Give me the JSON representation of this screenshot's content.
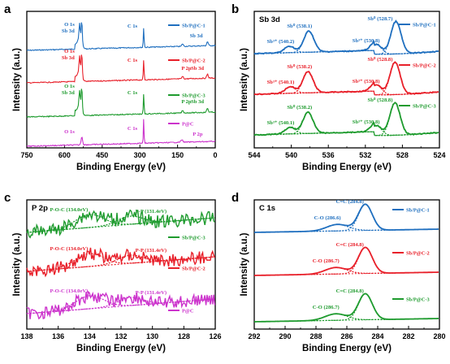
{
  "colors": {
    "blue": "#1f6fbf",
    "red": "#e8202a",
    "green": "#1e9b2e",
    "magenta": "#cc33cc"
  },
  "chart_data": [
    {
      "panel_label": "a",
      "type": "line",
      "xlabel": "Binding Energy (eV)",
      "ylabel": "Intensity (a.u.)",
      "xlim": [
        750,
        0
      ],
      "xticks": [
        750,
        600,
        450,
        300,
        150,
        0
      ],
      "x_reversed": true,
      "series": [
        {
          "name": "Sb/P@C-1",
          "color": "blue",
          "annotations": [
            "O 1s",
            "Sb 3d",
            "C 1s",
            "Sb 3d"
          ]
        },
        {
          "name": "Sb/P@C-2",
          "color": "red",
          "annotations": [
            "O 1s",
            "Sb 3d",
            "C 1s",
            "P 2p",
            "Sb 3d"
          ]
        },
        {
          "name": "Sb/P@C-3",
          "color": "green",
          "annotations": [
            "O 1s",
            "Sb 3d",
            "C 1s",
            "P 2p",
            "Sb 3d"
          ]
        },
        {
          "name": "P@C",
          "color": "magenta",
          "annotations": [
            "O 1s",
            "C 1s",
            "P 2p"
          ]
        }
      ]
    },
    {
      "panel_label": "b",
      "type": "line",
      "subtitle": "Sb 3d",
      "xlabel": "Binding Energy (eV)",
      "ylabel": "Intensity (a.u.)",
      "xlim": [
        544,
        524
      ],
      "xticks": [
        544,
        540,
        536,
        532,
        528,
        524
      ],
      "x_reversed": true,
      "series": [
        {
          "name": "Sb/P@C-1",
          "color": "blue",
          "peaks": [
            {
              "label": "Sb⁰ (528.7)",
              "x": 528.7
            },
            {
              "label": "Sb³⁺ (530.8)",
              "x": 530.8
            },
            {
              "label": "Sb⁰ (538.1)",
              "x": 538.1
            },
            {
              "label": "Sb³⁺ (540.2)",
              "x": 540.2
            }
          ]
        },
        {
          "name": "Sb/P@C-2",
          "color": "red",
          "peaks": [
            {
              "label": "Sb⁰ (528.8)",
              "x": 528.8
            },
            {
              "label": "Sb³⁺ (530.8)",
              "x": 530.8
            },
            {
              "label": "Sb⁰ (538.2)",
              "x": 538.2
            },
            {
              "label": "Sb³⁺ (540.1)",
              "x": 540.1
            }
          ]
        },
        {
          "name": "Sb/P@C-3",
          "color": "green",
          "peaks": [
            {
              "label": "Sb⁰ (528.8)",
              "x": 528.8
            },
            {
              "label": "Sb³⁺ (530.8)",
              "x": 530.8
            },
            {
              "label": "Sb⁰ (538.2)",
              "x": 538.2
            },
            {
              "label": "Sb³⁺ (540.1)",
              "x": 540.1
            }
          ]
        }
      ]
    },
    {
      "panel_label": "c",
      "type": "line",
      "subtitle": "P 2p",
      "xlabel": "Binding Energy (eV)",
      "ylabel": "Intensity (a.u.)",
      "xlim": [
        138,
        126
      ],
      "xticks": [
        138,
        136,
        134,
        132,
        130,
        128,
        126
      ],
      "x_reversed": true,
      "series": [
        {
          "name": "Sb/P@C-3",
          "color": "green",
          "peaks": [
            {
              "label": "P-O-C (134.0eV)",
              "x": 134.0
            },
            {
              "label": "P-P (131.4eV)",
              "x": 131.4
            }
          ]
        },
        {
          "name": "Sb/P@C-2",
          "color": "red",
          "peaks": [
            {
              "label": "P-O-C (134.0eV)",
              "x": 134.0
            },
            {
              "label": "P-P (131.4eV)",
              "x": 131.4
            }
          ]
        },
        {
          "name": "P@C",
          "color": "magenta",
          "peaks": [
            {
              "label": "P-O-C (134.0eV)",
              "x": 134.0
            },
            {
              "label": "P-P (131.4eV)",
              "x": 131.4
            }
          ]
        }
      ]
    },
    {
      "panel_label": "d",
      "type": "line",
      "subtitle": "C 1s",
      "xlabel": "Binding Energy (eV)",
      "ylabel": "Intensity (a.u.)",
      "xlim": [
        292,
        280
      ],
      "xticks": [
        292,
        290,
        288,
        286,
        284,
        282,
        280
      ],
      "x_reversed": true,
      "series": [
        {
          "name": "Sb/P@C-1",
          "color": "blue",
          "peaks": [
            {
              "label": "C=C (284.8)",
              "x": 284.8
            },
            {
              "label": "C-O (286.6)",
              "x": 286.6
            }
          ]
        },
        {
          "name": "Sb/P@C-2",
          "color": "red",
          "peaks": [
            {
              "label": "C=C (284.8)",
              "x": 284.8
            },
            {
              "label": "C-O (286.7)",
              "x": 286.7
            }
          ]
        },
        {
          "name": "Sb/P@C-3",
          "color": "green",
          "peaks": [
            {
              "label": "C=C (284.8)",
              "x": 284.8
            },
            {
              "label": "C-O (286.7)",
              "x": 286.7
            }
          ]
        }
      ]
    }
  ]
}
